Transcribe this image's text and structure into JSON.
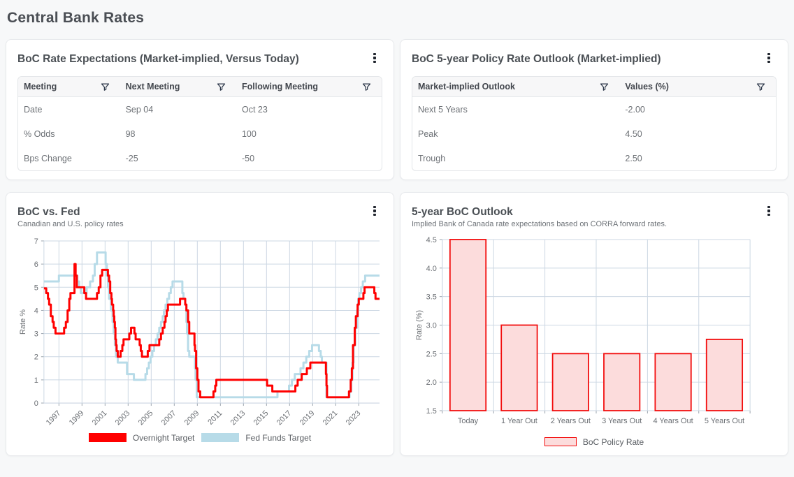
{
  "page": {
    "title": "Central Bank Rates"
  },
  "icons": {
    "card_menu": "kebab-menu-icon",
    "column_filter": "funnel-icon"
  },
  "colors": {
    "accent_red": "#ff0000",
    "accent_lightblue": "#b7dbe8",
    "bar_fill": "#fcdcdc",
    "bar_border": "#f20d0d",
    "gridline": "#ccd7e3",
    "card_border": "#e7e9ec",
    "header_bg": "#f7f7f8"
  },
  "cards": {
    "rate_expectations": {
      "title": "BoC Rate Expectations (Market-implied, Versus Today)",
      "table": {
        "headers": [
          "Meeting",
          "Next Meeting",
          "Following Meeting"
        ],
        "rows": [
          [
            "Date",
            "Sep 04",
            "Oct 23"
          ],
          [
            "% Odds",
            "98",
            "100"
          ],
          [
            "Bps Change",
            "-25",
            "-50"
          ]
        ]
      }
    },
    "policy_outlook": {
      "title": "BoC 5-year Policy Rate Outlook (Market-implied)",
      "table": {
        "headers": [
          "Market-implied Outlook",
          "Values (%)"
        ],
        "rows": [
          [
            "Next 5 Years",
            "-2.00"
          ],
          [
            "Peak",
            "4.50"
          ],
          [
            "Trough",
            "2.50"
          ]
        ]
      }
    }
  },
  "chart_data": [
    {
      "type": "line",
      "title": "BoC vs. Fed",
      "subtitle": "Canadian and U.S. policy rates",
      "xlabel": "",
      "ylabel": "Rate %",
      "ylim": [
        0,
        7
      ],
      "yticks": [
        0,
        1,
        2,
        3,
        4,
        5,
        6,
        7
      ],
      "xlim": [
        1995.7,
        2024.8
      ],
      "xticks": [
        1997,
        1999,
        2001,
        2003,
        2005,
        2007,
        2009,
        2011,
        2013,
        2015,
        2017,
        2019,
        2021,
        2023
      ],
      "grid": true,
      "step_interpolation": true,
      "legend_position": "bottom",
      "series": [
        {
          "name": "Overnight Target",
          "color": "#ff0000",
          "points": [
            [
              1995.7,
              4.95
            ],
            [
              1995.9,
              4.75
            ],
            [
              1996.05,
              4.5
            ],
            [
              1996.15,
              4.25
            ],
            [
              1996.3,
              3.75
            ],
            [
              1996.45,
              3.5
            ],
            [
              1996.55,
              3.25
            ],
            [
              1996.7,
              3.0
            ],
            [
              1997.45,
              3.25
            ],
            [
              1997.6,
              3.5
            ],
            [
              1997.75,
              4.0
            ],
            [
              1997.9,
              4.5
            ],
            [
              1998.0,
              4.75
            ],
            [
              1998.35,
              6.0
            ],
            [
              1998.45,
              5.5
            ],
            [
              1998.55,
              5.0
            ],
            [
              1999.2,
              4.75
            ],
            [
              1999.35,
              4.5
            ],
            [
              2000.3,
              4.75
            ],
            [
              2000.45,
              5.0
            ],
            [
              2000.6,
              5.5
            ],
            [
              2000.75,
              5.75
            ],
            [
              2001.25,
              5.5
            ],
            [
              2001.35,
              5.25
            ],
            [
              2001.45,
              4.75
            ],
            [
              2001.55,
              4.5
            ],
            [
              2001.6,
              4.25
            ],
            [
              2001.7,
              4.0
            ],
            [
              2001.75,
              3.75
            ],
            [
              2001.8,
              3.5
            ],
            [
              2001.85,
              3.25
            ],
            [
              2001.9,
              2.75
            ],
            [
              2001.95,
              2.5
            ],
            [
              2002.0,
              2.25
            ],
            [
              2002.1,
              2.0
            ],
            [
              2002.35,
              2.25
            ],
            [
              2002.5,
              2.5
            ],
            [
              2002.6,
              2.75
            ],
            [
              2003.1,
              3.0
            ],
            [
              2003.25,
              3.25
            ],
            [
              2003.55,
              3.0
            ],
            [
              2003.65,
              2.75
            ],
            [
              2004.0,
              2.5
            ],
            [
              2004.1,
              2.25
            ],
            [
              2004.2,
              2.0
            ],
            [
              2004.7,
              2.25
            ],
            [
              2004.85,
              2.5
            ],
            [
              2005.7,
              2.75
            ],
            [
              2005.85,
              3.0
            ],
            [
              2006.0,
              3.25
            ],
            [
              2006.15,
              3.5
            ],
            [
              2006.25,
              3.75
            ],
            [
              2006.35,
              4.0
            ],
            [
              2006.45,
              4.25
            ],
            [
              2007.5,
              4.5
            ],
            [
              2007.95,
              4.25
            ],
            [
              2008.05,
              4.0
            ],
            [
              2008.2,
              3.5
            ],
            [
              2008.3,
              3.0
            ],
            [
              2008.75,
              2.5
            ],
            [
              2008.8,
              2.25
            ],
            [
              2008.9,
              1.5
            ],
            [
              2009.0,
              1.0
            ],
            [
              2009.1,
              0.5
            ],
            [
              2009.25,
              0.25
            ],
            [
              2010.4,
              0.5
            ],
            [
              2010.55,
              0.75
            ],
            [
              2010.65,
              1.0
            ],
            [
              2015.05,
              0.75
            ],
            [
              2015.5,
              0.5
            ],
            [
              2017.5,
              0.75
            ],
            [
              2017.7,
              1.0
            ],
            [
              2018.05,
              1.25
            ],
            [
              2018.5,
              1.5
            ],
            [
              2018.8,
              1.75
            ],
            [
              2020.15,
              1.25
            ],
            [
              2020.2,
              0.75
            ],
            [
              2020.25,
              0.25
            ],
            [
              2022.15,
              0.5
            ],
            [
              2022.3,
              1.0
            ],
            [
              2022.4,
              1.5
            ],
            [
              2022.5,
              2.5
            ],
            [
              2022.65,
              3.25
            ],
            [
              2022.75,
              3.75
            ],
            [
              2022.9,
              4.25
            ],
            [
              2023.0,
              4.5
            ],
            [
              2023.4,
              4.75
            ],
            [
              2023.5,
              5.0
            ],
            [
              2024.35,
              4.75
            ],
            [
              2024.45,
              4.5
            ]
          ]
        },
        {
          "name": "Fed Funds Target",
          "color": "#b7dbe8",
          "points": [
            [
              1995.7,
              5.25
            ],
            [
              1997.0,
              5.5
            ],
            [
              1998.6,
              5.25
            ],
            [
              1998.75,
              5.0
            ],
            [
              1998.9,
              4.75
            ],
            [
              1999.4,
              5.0
            ],
            [
              1999.7,
              5.25
            ],
            [
              1999.95,
              5.5
            ],
            [
              2000.1,
              6.0
            ],
            [
              2000.3,
              6.5
            ],
            [
              2001.05,
              6.0
            ],
            [
              2001.15,
              5.5
            ],
            [
              2001.25,
              5.0
            ],
            [
              2001.35,
              4.5
            ],
            [
              2001.5,
              4.0
            ],
            [
              2001.65,
              3.5
            ],
            [
              2001.75,
              3.0
            ],
            [
              2001.85,
              2.5
            ],
            [
              2001.95,
              2.0
            ],
            [
              2002.1,
              1.75
            ],
            [
              2002.9,
              1.25
            ],
            [
              2003.5,
              1.0
            ],
            [
              2004.5,
              1.25
            ],
            [
              2004.65,
              1.5
            ],
            [
              2004.8,
              1.75
            ],
            [
              2004.95,
              2.0
            ],
            [
              2005.1,
              2.25
            ],
            [
              2005.25,
              2.5
            ],
            [
              2005.4,
              2.75
            ],
            [
              2005.55,
              3.0
            ],
            [
              2005.7,
              3.25
            ],
            [
              2005.85,
              3.5
            ],
            [
              2006.0,
              3.75
            ],
            [
              2006.1,
              4.0
            ],
            [
              2006.25,
              4.25
            ],
            [
              2006.4,
              4.5
            ],
            [
              2006.55,
              4.75
            ],
            [
              2006.7,
              5.0
            ],
            [
              2006.85,
              5.25
            ],
            [
              2007.7,
              4.75
            ],
            [
              2007.8,
              4.5
            ],
            [
              2007.95,
              4.25
            ],
            [
              2008.05,
              3.5
            ],
            [
              2008.1,
              3.0
            ],
            [
              2008.2,
              2.25
            ],
            [
              2008.3,
              2.0
            ],
            [
              2008.8,
              1.5
            ],
            [
              2008.85,
              1.0
            ],
            [
              2008.95,
              0.25
            ],
            [
              2015.95,
              0.5
            ],
            [
              2016.95,
              0.75
            ],
            [
              2017.2,
              1.0
            ],
            [
              2017.45,
              1.25
            ],
            [
              2017.95,
              1.5
            ],
            [
              2018.2,
              1.75
            ],
            [
              2018.45,
              2.0
            ],
            [
              2018.7,
              2.25
            ],
            [
              2018.95,
              2.5
            ],
            [
              2019.55,
              2.25
            ],
            [
              2019.7,
              2.0
            ],
            [
              2019.8,
              1.75
            ],
            [
              2020.2,
              0.25
            ],
            [
              2022.2,
              0.5
            ],
            [
              2022.35,
              1.0
            ],
            [
              2022.45,
              1.75
            ],
            [
              2022.55,
              2.5
            ],
            [
              2022.7,
              3.25
            ],
            [
              2022.85,
              4.0
            ],
            [
              2022.95,
              4.5
            ],
            [
              2023.05,
              4.75
            ],
            [
              2023.2,
              5.0
            ],
            [
              2023.35,
              5.25
            ],
            [
              2023.55,
              5.5
            ]
          ]
        }
      ]
    },
    {
      "type": "bar",
      "title": "5-year BoC Outlook",
      "subtitle": "Implied Bank of Canada rate expectations based on CORRA forward rates.",
      "xlabel": "",
      "ylabel": "Rate (%)",
      "ylim": [
        1.5,
        4.5
      ],
      "yticks": [
        1.5,
        2.0,
        2.5,
        3.0,
        3.5,
        4.0,
        4.5
      ],
      "categories": [
        "Today",
        "1 Year Out",
        "2 Years Out",
        "3 Years Out",
        "4 Years Out",
        "5 Years Out"
      ],
      "values": [
        4.5,
        3.0,
        2.5,
        2.5,
        2.5,
        2.75
      ],
      "series_name": "BoC Policy Rate",
      "colors": {
        "fill": "#fcdcdc",
        "border": "#f20d0d"
      },
      "grid": true,
      "legend_position": "bottom"
    }
  ]
}
